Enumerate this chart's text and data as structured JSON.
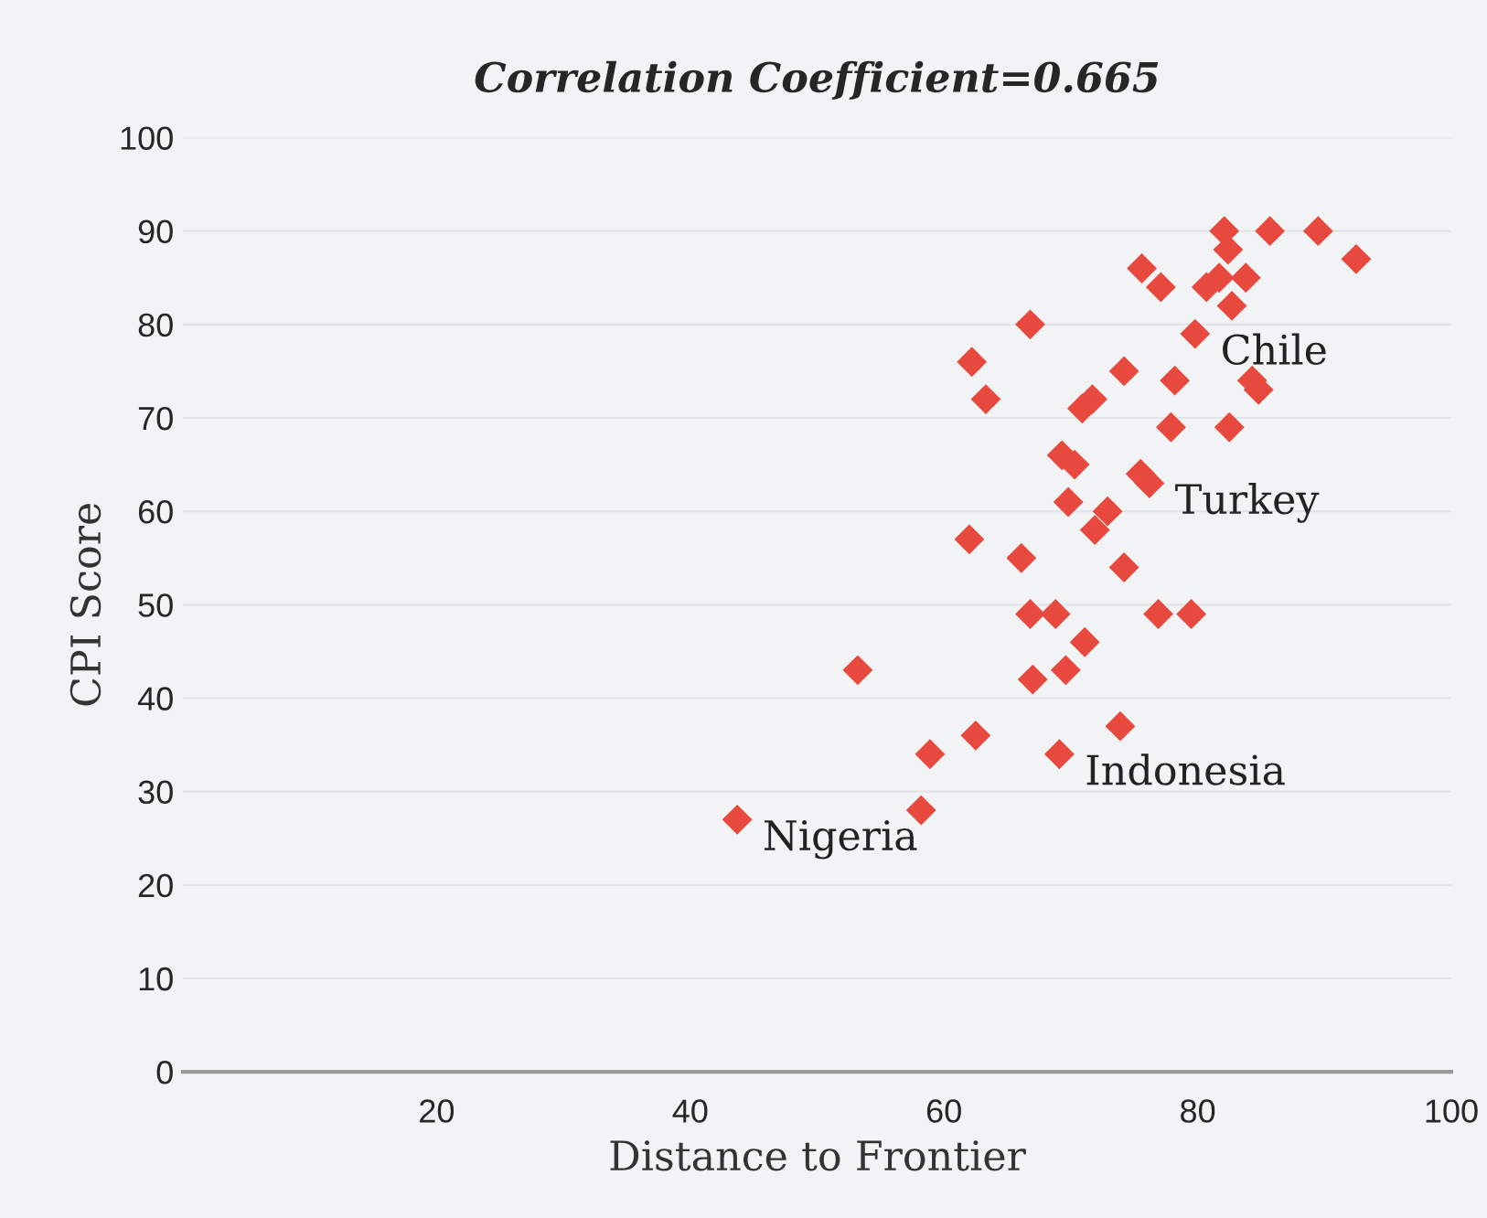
{
  "chart_data": {
    "type": "scatter",
    "title": "Correlation Coefficient=0.665",
    "xlabel": "Distance to Frontier",
    "ylabel": "CPI Score",
    "x": [
      43.7,
      58.2,
      58.9,
      62.5,
      53.2,
      67.0,
      69.6,
      73.9,
      69.1,
      71.1,
      66.8,
      68.8,
      76.9,
      79.5,
      62.0,
      66.1,
      74.2,
      71.9,
      72.9,
      69.8,
      76.2,
      75.5,
      70.3,
      69.3,
      77.9,
      82.5,
      70.9,
      71.7,
      63.3,
      84.8,
      84.3,
      78.2,
      74.2,
      62.2,
      79.8,
      66.8,
      82.7,
      81.7,
      83.8,
      80.7,
      77.1,
      75.6,
      82.4,
      82.1,
      85.7,
      89.5,
      92.5
    ],
    "series": [
      {
        "color": "#e8493e",
        "values": [
          27,
          28,
          34,
          36,
          43,
          42,
          43,
          37,
          34,
          46,
          49,
          49,
          49,
          49,
          57,
          55,
          54,
          58,
          60,
          61,
          63,
          64,
          65,
          66,
          69,
          69,
          71,
          72,
          72,
          73,
          74,
          74,
          75,
          76,
          79,
          80,
          82,
          85,
          85,
          84,
          84,
          86,
          88,
          90,
          90,
          90,
          87
        ]
      }
    ],
    "marker": "diamond",
    "grid": "y",
    "xlim": [
      0,
      100
    ],
    "xticks": [
      20,
      40,
      60,
      80,
      100
    ],
    "ylim": [
      0,
      100
    ],
    "yticks": [
      0,
      10,
      20,
      30,
      40,
      50,
      60,
      70,
      80,
      90,
      100
    ],
    "annotations": [
      {
        "text": "Chile",
        "x": 79.8,
        "y": 79
      },
      {
        "text": "Turkey",
        "x": 76.2,
        "y": 63
      },
      {
        "text": "Indonesia",
        "x": 69.1,
        "y": 34
      },
      {
        "text": "Nigeria",
        "x": 43.7,
        "y": 27
      }
    ]
  }
}
